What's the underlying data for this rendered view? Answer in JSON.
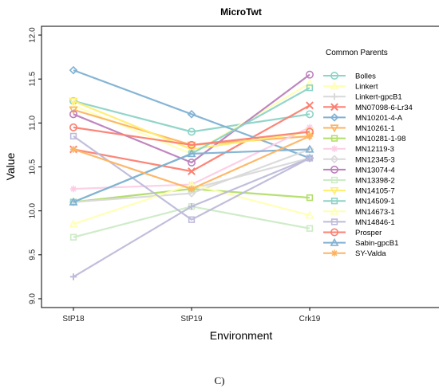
{
  "caption": "C)",
  "chart_data": {
    "type": "line",
    "title": "MicroTwt",
    "xlabel": "Environment",
    "ylabel": "Value",
    "categories": [
      "StP18",
      "StP19",
      "Crk19"
    ],
    "ylim": [
      8.9,
      12.1
    ],
    "yticks": [
      "9.0",
      "9.5",
      "10.0",
      "10.5",
      "11.0",
      "11.5",
      "12.0"
    ],
    "legend_title": "Common Parents",
    "legend_position": "right",
    "grid": false,
    "series": [
      {
        "name": "Bolles",
        "values": [
          11.25,
          10.9,
          11.1
        ],
        "color": "#8dd3c7",
        "marker": "circle"
      },
      {
        "name": "Linkert",
        "values": [
          11.2,
          10.65,
          11.45
        ],
        "color": "#ffffb3",
        "marker": "triangle"
      },
      {
        "name": "Linkert-gpcB1",
        "values": [
          10.1,
          10.25,
          10.6
        ],
        "color": "#d9d9d9",
        "marker": "plus"
      },
      {
        "name": "MN07098-6-Lr34",
        "values": [
          10.7,
          10.45,
          11.2
        ],
        "color": "#fb8072",
        "marker": "x"
      },
      {
        "name": "MN10201-4-A",
        "values": [
          11.6,
          11.1,
          10.6
        ],
        "color": "#80b1d3",
        "marker": "diamond"
      },
      {
        "name": "MN10261-1",
        "values": [
          11.15,
          10.75,
          10.85
        ],
        "color": "#fdb462",
        "marker": "triangle-down"
      },
      {
        "name": "MN10281-1-98",
        "values": [
          10.1,
          10.25,
          10.15
        ],
        "color": "#b3de69",
        "marker": "square"
      },
      {
        "name": "MN12119-3",
        "values": [
          10.25,
          10.3,
          10.95
        ],
        "color": "#fccde5",
        "marker": "asterisk"
      },
      {
        "name": "MN12345-3",
        "values": [
          10.1,
          10.2,
          10.7
        ],
        "color": "#d9d9d9",
        "marker": "diamond"
      },
      {
        "name": "MN13074-4",
        "values": [
          11.1,
          10.55,
          11.55
        ],
        "color": "#bc80bd",
        "marker": "circle"
      },
      {
        "name": "MN13398-2",
        "values": [
          9.7,
          10.05,
          9.8
        ],
        "color": "#ccebc5",
        "marker": "square"
      },
      {
        "name": "MN14105-7",
        "values": [
          11.25,
          10.7,
          10.9
        ],
        "color": "#ffed6f",
        "marker": "triangle-down"
      },
      {
        "name": "MN14509-1",
        "values": [
          10.1,
          10.65,
          11.4
        ],
        "color": "#8dd3c7",
        "marker": "square"
      },
      {
        "name": "MN14673-1",
        "values": [
          9.85,
          10.3,
          9.95
        ],
        "color": "#ffffb3",
        "marker": "triangle"
      },
      {
        "name": "MN14846-1",
        "values": [
          10.85,
          9.9,
          10.6
        ],
        "color": "#bebada",
        "marker": "square"
      },
      {
        "name": "Prosper",
        "values": [
          10.95,
          10.75,
          10.9
        ],
        "color": "#fb8072",
        "marker": "circle"
      },
      {
        "name": "Sabin-gpcB1",
        "values": [
          10.1,
          10.65,
          10.7
        ],
        "color": "#80b1d3",
        "marker": "triangle"
      },
      {
        "name": "SY-Valda",
        "values": [
          10.7,
          10.25,
          10.85
        ],
        "color": "#fdb462",
        "marker": "asterisk"
      },
      {
        "name": "",
        "values": [
          9.25,
          10.05,
          10.6
        ],
        "color": "#bebada",
        "marker": "plus"
      }
    ]
  }
}
